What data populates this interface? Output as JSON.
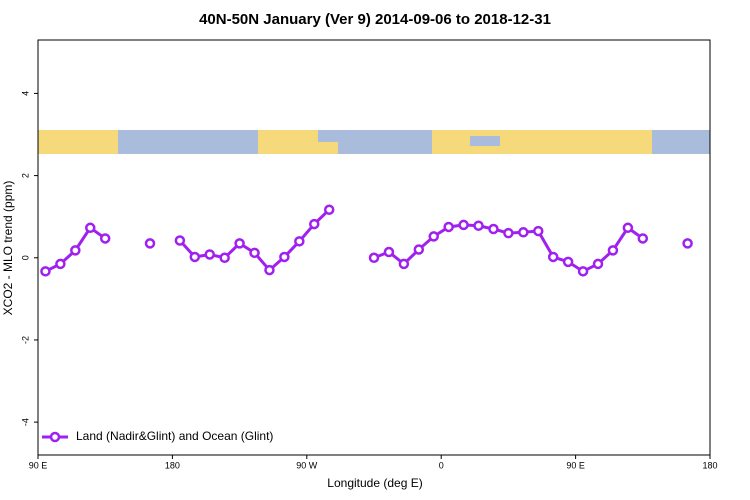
{
  "chart_data": {
    "type": "line",
    "title": "40N-50N January (Ver 9)   2014-09-06 to 2018-12-31",
    "x_label": "Longitude (deg E)",
    "y_label": "XCO2 - MLO trend (ppm)",
    "x": [
      95,
      105,
      115,
      125,
      135,
      145,
      165,
      175,
      185,
      195,
      205,
      215,
      225,
      235,
      245,
      255,
      265,
      275,
      285,
      295,
      315,
      325,
      335,
      345,
      355,
      365,
      375,
      385,
      395,
      405,
      415,
      425,
      435,
      445,
      455,
      465,
      475,
      485,
      495,
      505,
      525
    ],
    "series": [
      {
        "name": "Land (Nadir&Glint) and Ocean (Glint)",
        "color": "#a020f0",
        "values": [
          -0.33,
          -0.15,
          0.18,
          0.73,
          0.47,
          null,
          0.35,
          null,
          0.42,
          0.02,
          0.08,
          0.0,
          0.35,
          0.12,
          -0.3,
          0.02,
          0.4,
          0.82,
          1.17,
          null,
          0.0,
          0.14,
          -0.15,
          0.2,
          0.52,
          0.75,
          0.8,
          0.78,
          0.7,
          0.6,
          0.62,
          0.65,
          0.02,
          -0.1,
          -0.33,
          -0.15,
          0.18,
          0.73,
          0.47,
          null,
          0.35
        ]
      }
    ],
    "xlim": [
      90,
      540
    ],
    "xticks": [
      {
        "value": 90,
        "label": "90 E"
      },
      {
        "value": 180,
        "label": "180"
      },
      {
        "value": 270,
        "label": "90 W"
      },
      {
        "value": 360,
        "label": "0"
      },
      {
        "value": 450,
        "label": "90 E"
      },
      {
        "value": 540,
        "label": "180"
      }
    ],
    "ylim": [
      -4.8,
      5.3
    ],
    "yticks": [
      -4,
      -2,
      0,
      2,
      4
    ],
    "legend": "bottom-left"
  }
}
